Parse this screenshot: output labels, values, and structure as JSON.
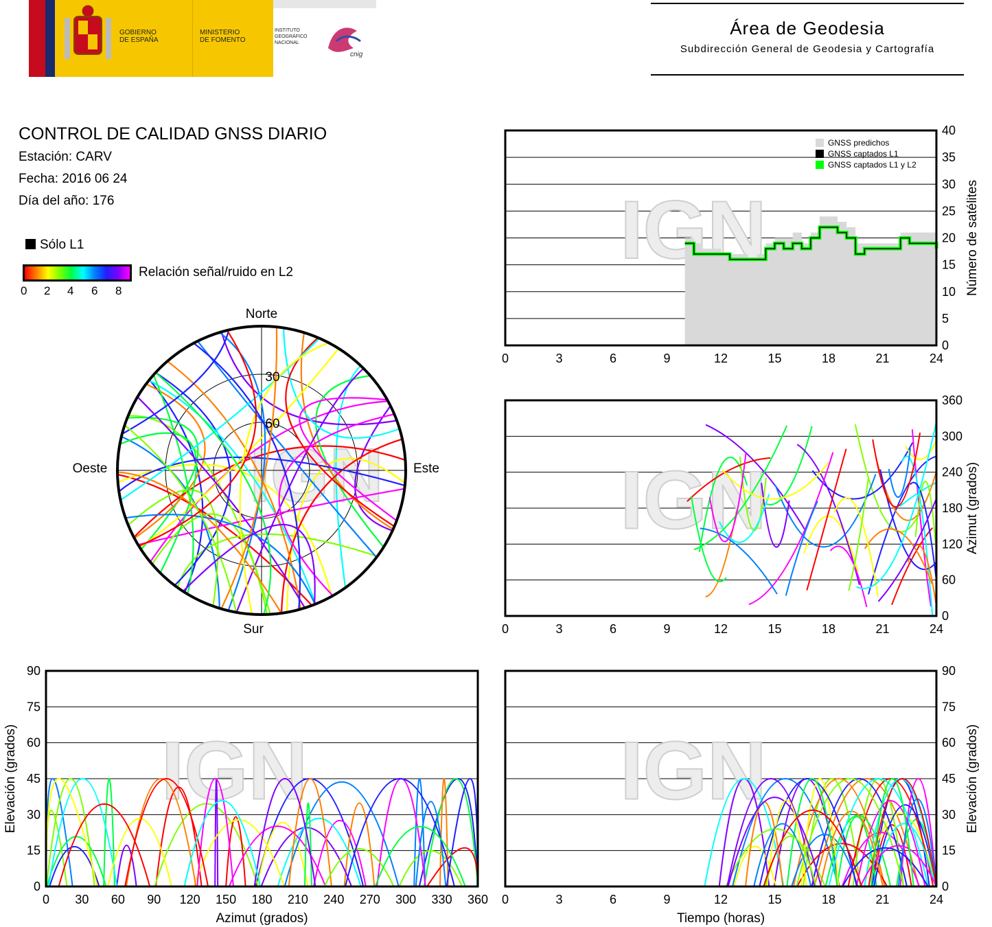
{
  "header": {
    "gobierno": [
      "GOBIERNO",
      "DE ESPAÑA"
    ],
    "ministerio": [
      "MINISTERIO",
      "DE FOMENTO"
    ],
    "instituto": [
      "INSTITUTO",
      "GEOGRÁFICO",
      "NACIONAL"
    ],
    "cnig": "cnig",
    "area_title": "Área de Geodesia",
    "area_subtitle": "Subdirección General de Geodesia y Cartografía"
  },
  "info": {
    "title": "CONTROL DE CALIDAD GNSS DIARIO",
    "station": "Estación: CARV",
    "date": "Fecha: 2016 06 24",
    "doy": "Día del año: 176"
  },
  "legend": {
    "solo_l1": "Sólo L1",
    "snr_label": "Relación señal/ruido en L2",
    "snr_ticks": [
      "0",
      "2",
      "4",
      "6",
      "8"
    ]
  },
  "watermark": "IGN",
  "colors": {
    "predicted": "#d9d9d9",
    "l1": "#000000",
    "l1l2": "#00ff00",
    "snr_scale": [
      "#ff0000",
      "#ff8000",
      "#ffff00",
      "#80ff00",
      "#00ff40",
      "#00ffff",
      "#0080ff",
      "#2020ff",
      "#8000ff",
      "#ff00ff"
    ]
  },
  "chart_data": [
    {
      "id": "satellites",
      "type": "area",
      "xlim": [
        0,
        24
      ],
      "xticks": [
        "0",
        "3",
        "6",
        "9",
        "12",
        "15",
        "18",
        "21",
        "24"
      ],
      "ylim": [
        0,
        40
      ],
      "yticks": [
        "0",
        "5",
        "10",
        "15",
        "20",
        "25",
        "30",
        "35",
        "40"
      ],
      "ylabel": "Número de satélites",
      "legend": [
        "GNSS predichos",
        "GNSS captados L1",
        "GNSS captados L1 y L2"
      ],
      "legend_position": "top-right",
      "predicted_x": [
        10,
        10.5,
        11,
        11.5,
        12,
        12.5,
        13,
        13.5,
        14,
        14.5,
        15,
        15.5,
        16,
        16.5,
        17,
        17.5,
        18,
        18.5,
        19,
        19.5,
        20,
        20.5,
        21,
        21.5,
        22,
        22.5,
        23,
        23.5,
        24
      ],
      "predicted_y": [
        20,
        19,
        18,
        18,
        17,
        17,
        17,
        16,
        17,
        19,
        20,
        20,
        21,
        19,
        21,
        24,
        24,
        23,
        22,
        19,
        19,
        19,
        19,
        19,
        21,
        21,
        21,
        21,
        21
      ],
      "captured_x": [
        10,
        10.5,
        11,
        11.5,
        12,
        12.5,
        13,
        13.5,
        14,
        14.5,
        15,
        15.5,
        16,
        16.5,
        17,
        17.5,
        18,
        18.5,
        19,
        19.5,
        20,
        20.5,
        21,
        21.5,
        22,
        22.5,
        23,
        23.5,
        24
      ],
      "captured_y": [
        19,
        17,
        17,
        17,
        17,
        16,
        16,
        16,
        16,
        18,
        19,
        18,
        19,
        18,
        20,
        22,
        22,
        21,
        20,
        17,
        18,
        18,
        18,
        18,
        20,
        19,
        19,
        19,
        18
      ]
    },
    {
      "id": "skyplot",
      "type": "scatter",
      "labels": {
        "north": "Norte",
        "south": "Sur",
        "east": "Este",
        "west": "Oeste"
      },
      "rings": [
        "30",
        "60"
      ]
    },
    {
      "id": "azimuth_time",
      "type": "scatter",
      "xlim": [
        0,
        24
      ],
      "xticks": [
        "0",
        "3",
        "6",
        "9",
        "12",
        "15",
        "18",
        "21",
        "24"
      ],
      "ylim": [
        0,
        360
      ],
      "yticks": [
        "0",
        "60",
        "120",
        "180",
        "240",
        "300",
        "360"
      ],
      "ylabel": "Azimut (grados)"
    },
    {
      "id": "elevation_azimuth",
      "type": "scatter",
      "xlim": [
        0,
        360
      ],
      "xticks": [
        "0",
        "30",
        "60",
        "90",
        "120",
        "150",
        "180",
        "210",
        "240",
        "270",
        "300",
        "330",
        "360"
      ],
      "xlabel": "Azimut (grados)",
      "ylim": [
        0,
        90
      ],
      "yticks": [
        "0",
        "15",
        "30",
        "45",
        "60",
        "75",
        "90"
      ],
      "ylabel": "Elevación (grados)"
    },
    {
      "id": "elevation_time",
      "type": "scatter",
      "xlim": [
        0,
        24
      ],
      "xticks": [
        "0",
        "3",
        "6",
        "9",
        "12",
        "15",
        "18",
        "21",
        "24"
      ],
      "xlabel": "Tiempo (horas)",
      "ylim": [
        0,
        90
      ],
      "yticks": [
        "0",
        "15",
        "30",
        "45",
        "60",
        "75",
        "90"
      ],
      "ylabel": "Elevación (grados)"
    }
  ]
}
